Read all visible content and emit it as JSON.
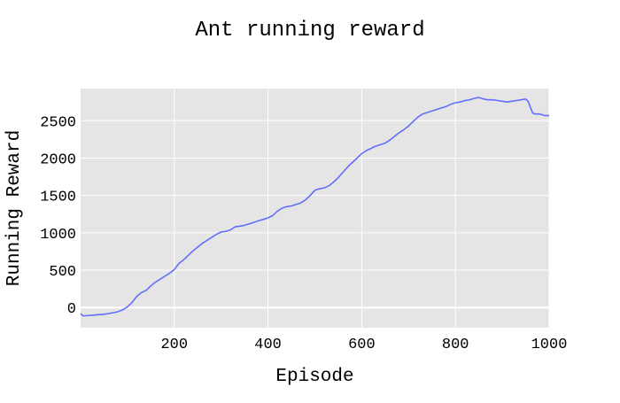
{
  "chart_data": {
    "type": "line",
    "title": "Ant running reward",
    "xlabel": "Episode",
    "ylabel": "Running Reward",
    "xlim": [
      0,
      1000
    ],
    "ylim": [
      -270,
      2930
    ],
    "x_ticks": [
      200,
      400,
      600,
      800,
      1000
    ],
    "y_ticks": [
      0,
      500,
      1000,
      1500,
      2000,
      2500
    ],
    "grid": true,
    "colors": {
      "line": "#636efa",
      "plot_bg": "#e5e5e5",
      "grid": "#ffffff"
    },
    "series": [
      {
        "x": [
          0,
          5,
          10,
          20,
          30,
          40,
          50,
          60,
          70,
          80,
          90,
          100,
          110,
          120,
          130,
          140,
          150,
          160,
          170,
          180,
          190,
          200,
          210,
          220,
          230,
          240,
          250,
          260,
          270,
          280,
          290,
          300,
          310,
          320,
          330,
          340,
          350,
          360,
          370,
          380,
          390,
          400,
          410,
          420,
          430,
          440,
          450,
          460,
          470,
          480,
          490,
          500,
          510,
          520,
          530,
          540,
          550,
          560,
          570,
          580,
          590,
          600,
          610,
          620,
          630,
          640,
          650,
          660,
          670,
          680,
          690,
          700,
          710,
          720,
          730,
          740,
          750,
          760,
          770,
          780,
          790,
          800,
          810,
          820,
          830,
          840,
          850,
          860,
          870,
          880,
          890,
          900,
          910,
          920,
          930,
          940,
          950,
          955,
          960,
          965,
          970,
          980,
          990,
          1000
        ],
        "y": [
          -80,
          -110,
          -110,
          -105,
          -100,
          -95,
          -90,
          -80,
          -70,
          -55,
          -30,
          10,
          70,
          150,
          200,
          230,
          290,
          340,
          380,
          420,
          460,
          510,
          590,
          640,
          700,
          760,
          810,
          860,
          900,
          940,
          980,
          1010,
          1020,
          1040,
          1080,
          1090,
          1100,
          1120,
          1140,
          1160,
          1180,
          1200,
          1230,
          1290,
          1330,
          1350,
          1360,
          1380,
          1400,
          1440,
          1500,
          1570,
          1590,
          1600,
          1630,
          1680,
          1740,
          1810,
          1880,
          1940,
          2000,
          2060,
          2100,
          2130,
          2160,
          2180,
          2200,
          2240,
          2290,
          2340,
          2380,
          2430,
          2490,
          2550,
          2590,
          2610,
          2630,
          2650,
          2670,
          2690,
          2720,
          2740,
          2750,
          2770,
          2780,
          2800,
          2810,
          2790,
          2780,
          2780,
          2770,
          2760,
          2750,
          2760,
          2770,
          2780,
          2790,
          2760,
          2680,
          2600,
          2590,
          2590,
          2570,
          2570
        ]
      }
    ]
  }
}
